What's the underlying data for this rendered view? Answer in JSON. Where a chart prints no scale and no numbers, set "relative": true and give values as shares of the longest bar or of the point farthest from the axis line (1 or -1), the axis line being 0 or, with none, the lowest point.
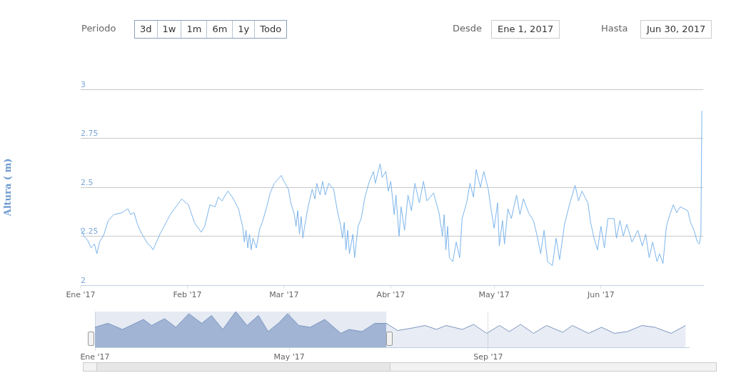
{
  "chart_data": [
    {
      "type": "line",
      "ylabel": "Altura ( m)",
      "annotations": [
        "Periodo",
        "3d",
        "1w",
        "1m",
        "6m",
        "1y",
        "Todo",
        "Desde",
        "Ene 1, 2017",
        "Hasta",
        "Jun 30, 2017"
      ],
      "xlim": [
        "2017-01-01",
        "2017-06-30T16:00"
      ],
      "xticks": [
        {
          "value": "2017-01-01",
          "label": "Ene '17"
        },
        {
          "value": "2017-02-01",
          "label": "Feb '17"
        },
        {
          "value": "2017-03-01",
          "label": "Mar '17"
        },
        {
          "value": "2017-04-01",
          "label": "Abr '17"
        },
        {
          "value": "2017-05-01",
          "label": "May '17"
        },
        {
          "value": "2017-06-01",
          "label": "Jun '17"
        }
      ],
      "ylim": [
        2,
        3
      ],
      "yticks": [
        2,
        2.25,
        2.5,
        2.75,
        3
      ],
      "grid": "y",
      "legend": false,
      "marker": "none",
      "line_style": "solid",
      "series": [
        {
          "color": "#7cb5ec",
          "x": [
            "2017-01-01",
            "2017-01-02",
            "2017-01-03",
            "2017-01-04",
            "2017-01-05",
            "2017-01-05T17:00",
            "2017-01-06T12:00",
            "2017-01-07T19:00",
            "2017-01-09",
            "2017-01-10T14:00",
            "2017-01-13",
            "2017-01-14T17:00",
            "2017-01-15T12:00",
            "2017-01-16T12:00",
            "2017-01-17T12:00",
            "2017-01-18T12:00",
            "2017-01-19T12:00",
            "2017-01-20T12:00",
            "2017-01-21T07:00",
            "2017-01-22",
            "2017-01-23",
            "2017-01-24",
            "2017-01-27",
            "2017-01-30T07:00",
            "2017-02-01T07:00",
            "2017-02-03",
            "2017-02-05",
            "2017-02-06",
            "2017-02-07T12:00",
            "2017-02-09",
            "2017-02-10",
            "2017-02-11",
            "2017-02-12T17:00",
            "2017-02-14",
            "2017-02-15T19:00",
            "2017-02-17",
            "2017-02-17T12:00",
            "2017-02-18",
            "2017-02-18T12:00",
            "2017-02-19",
            "2017-02-19T12:00",
            "2017-02-20",
            "2017-02-21",
            "2017-02-22",
            "2017-02-22T17:00",
            "2017-02-24",
            "2017-02-25",
            "2017-02-26T05:00",
            "2017-02-28T05:00",
            "2017-03-01",
            "2017-03-02T07:00",
            "2017-03-03",
            "2017-03-04",
            "2017-03-04T12:00",
            "2017-03-05",
            "2017-03-05T12:00",
            "2017-03-06",
            "2017-03-06T12:00",
            "2017-03-07",
            "2017-03-08",
            "2017-03-09T05:00",
            "2017-03-10",
            "2017-03-10T12:00",
            "2017-03-11T12:00",
            "2017-03-12T05:00",
            "2017-03-13",
            "2017-03-14",
            "2017-03-15T10:00",
            "2017-03-16T12:00",
            "2017-03-17T12:00",
            "2017-03-18",
            "2017-03-18T12:00",
            "2017-03-19",
            "2017-03-19T12:00",
            "2017-03-20",
            "2017-03-21",
            "2017-03-21T12:00",
            "2017-03-22T12:00",
            "2017-03-23T10:00",
            "2017-03-24T12:00",
            "2017-03-25T19:00",
            "2017-03-27",
            "2017-03-27T12:00",
            "2017-03-28T22:00",
            "2017-03-29T12:00",
            "2017-03-30T14:00",
            "2017-03-31T07:00",
            "2017-04-01",
            "2017-04-02",
            "2017-04-02T12:00",
            "2017-04-03T10:00",
            "2017-04-04",
            "2017-04-05",
            "2017-04-06",
            "2017-04-07",
            "2017-04-08",
            "2017-04-09T07:00",
            "2017-04-10T12:00",
            "2017-04-11T12:00",
            "2017-04-13T10:00",
            "2017-04-15",
            "2017-04-16",
            "2017-04-16T12:00",
            "2017-04-17",
            "2017-04-17T12:00",
            "2017-04-18",
            "2017-04-19",
            "2017-04-20",
            "2017-04-21",
            "2017-04-21T17:00",
            "2017-04-23",
            "2017-04-24",
            "2017-04-25",
            "2017-04-25T19:00",
            "2017-04-27",
            "2017-04-28",
            "2017-04-29T07:00",
            "2017-04-30",
            "2017-05-01",
            "2017-05-02",
            "2017-05-02T12:00",
            "2017-05-03T10:00",
            "2017-05-04",
            "2017-05-05",
            "2017-05-06",
            "2017-05-07T12:00",
            "2017-05-08T12:00",
            "2017-05-09T12:00",
            "2017-05-11",
            "2017-05-12T10:00",
            "2017-05-13T12:00",
            "2017-05-14T12:00",
            "2017-05-15T12:00",
            "2017-05-16T12:00",
            "2017-05-17T22:00",
            "2017-05-19",
            "2017-05-20",
            "2017-05-21T10:00",
            "2017-05-23",
            "2017-05-24T12:00",
            "2017-05-25T12:00",
            "2017-05-26T12:00",
            "2017-05-28T05:00",
            "2017-05-29",
            "2017-05-30",
            "2017-05-31",
            "2017-06-01",
            "2017-06-02",
            "2017-06-03",
            "2017-06-04T19:00",
            "2017-06-05T12:00",
            "2017-06-06T12:00",
            "2017-06-07T12:00",
            "2017-06-08T12:00",
            "2017-06-10",
            "2017-06-11T17:00",
            "2017-06-13",
            "2017-06-14",
            "2017-06-15",
            "2017-06-16",
            "2017-06-17T07:00",
            "2017-06-18",
            "2017-06-19",
            "2017-06-20",
            "2017-06-21",
            "2017-06-22",
            "2017-06-23",
            "2017-06-24",
            "2017-06-26T05:00",
            "2017-06-27",
            "2017-06-28",
            "2017-06-29",
            "2017-06-29T14:00",
            "2017-06-30",
            "2017-06-30T07:00"
          ],
          "values": [
            2.29,
            2.25,
            2.23,
            2.19,
            2.21,
            2.16,
            2.22,
            2.26,
            2.33,
            2.36,
            2.37,
            2.39,
            2.36,
            2.37,
            2.31,
            2.27,
            2.24,
            2.21,
            2.2,
            2.18,
            2.22,
            2.26,
            2.36,
            2.44,
            2.41,
            2.32,
            2.27,
            2.3,
            2.41,
            2.4,
            2.45,
            2.43,
            2.48,
            2.45,
            2.39,
            2.3,
            2.22,
            2.28,
            2.19,
            2.26,
            2.18,
            2.24,
            2.19,
            2.29,
            2.32,
            2.4,
            2.47,
            2.52,
            2.56,
            2.53,
            2.49,
            2.42,
            2.36,
            2.3,
            2.38,
            2.26,
            2.35,
            2.24,
            2.3,
            2.4,
            2.49,
            2.44,
            2.52,
            2.46,
            2.53,
            2.46,
            2.52,
            2.49,
            2.38,
            2.3,
            2.24,
            2.32,
            2.18,
            2.28,
            2.16,
            2.26,
            2.14,
            2.3,
            2.34,
            2.45,
            2.53,
            2.58,
            2.52,
            2.62,
            2.55,
            2.58,
            2.48,
            2.53,
            2.36,
            2.46,
            2.25,
            2.4,
            2.28,
            2.46,
            2.38,
            2.52,
            2.42,
            2.53,
            2.43,
            2.47,
            2.37,
            2.25,
            2.36,
            2.18,
            2.3,
            2.14,
            2.12,
            2.22,
            2.14,
            2.34,
            2.42,
            2.52,
            2.45,
            2.59,
            2.5,
            2.58,
            2.49,
            2.4,
            2.29,
            2.42,
            2.2,
            2.33,
            2.21,
            2.39,
            2.34,
            2.46,
            2.36,
            2.44,
            2.37,
            2.33,
            2.25,
            2.16,
            2.28,
            2.12,
            2.1,
            2.24,
            2.13,
            2.31,
            2.42,
            2.51,
            2.43,
            2.48,
            2.42,
            2.32,
            2.24,
            2.18,
            2.3,
            2.19,
            2.34,
            2.34,
            2.24,
            2.33,
            2.25,
            2.31,
            2.22,
            2.28,
            2.2,
            2.26,
            2.14,
            2.22,
            2.12,
            2.16,
            2.11,
            2.3,
            2.36,
            2.41,
            2.37,
            2.4,
            2.38,
            2.32,
            2.28,
            2.22,
            2.21,
            2.26,
            2.89
          ]
        }
      ]
    },
    {
      "type": "area",
      "relative": true,
      "legend": false,
      "grid": "x",
      "marker": "none",
      "xlim": [
        "2017-01-01",
        "2018-01-03"
      ],
      "xticks": [
        {
          "value": "2017-01-01",
          "label": "Ene '17"
        },
        {
          "value": "2017-05-01",
          "label": "May '17"
        },
        {
          "value": "2017-09-01",
          "label": "Sep '17"
        }
      ],
      "bands": [
        {
          "axis": "x",
          "from": "2017-01-01",
          "to": "2017-06-30",
          "color": "#a9bbd8"
        }
      ],
      "series": [
        {
          "color": "#7d97c0",
          "x": [
            "2017-01-01",
            "2017-01-09",
            "2017-01-18",
            "2017-01-31",
            "2017-02-05",
            "2017-02-13",
            "2017-02-20",
            "2017-02-28",
            "2017-03-08",
            "2017-03-14",
            "2017-03-21",
            "2017-03-29",
            "2017-04-05",
            "2017-04-12",
            "2017-04-18",
            "2017-04-25",
            "2017-04-30",
            "2017-05-07",
            "2017-05-14",
            "2017-05-23",
            "2017-06-02",
            "2017-06-07",
            "2017-06-15",
            "2017-06-23",
            "2017-06-30",
            "2017-07-07",
            "2017-07-15",
            "2017-07-24",
            "2017-07-31",
            "2017-08-06",
            "2017-08-16",
            "2017-08-23",
            "2017-08-31",
            "2017-09-08",
            "2017-09-14",
            "2017-09-21",
            "2017-09-29",
            "2017-10-07",
            "2017-10-17",
            "2017-10-23",
            "2017-11-02",
            "2017-11-10",
            "2017-11-18",
            "2017-11-26",
            "2017-12-05",
            "2017-12-13",
            "2017-12-23",
            "2018-01-01"
          ],
          "values": [
            0.56,
            0.67,
            0.5,
            0.78,
            0.61,
            0.8,
            0.56,
            0.94,
            0.67,
            0.89,
            0.5,
            1,
            0.61,
            0.89,
            0.44,
            0.7,
            0.94,
            0.61,
            0.56,
            0.78,
            0.39,
            0.5,
            0.44,
            0.67,
            0.67,
            0.47,
            0.53,
            0.61,
            0.5,
            0.61,
            0.5,
            0.64,
            0.39,
            0.61,
            0.44,
            0.64,
            0.39,
            0.61,
            0.42,
            0.61,
            0.39,
            0.56,
            0.39,
            0.44,
            0.61,
            0.56,
            0.39,
            0.61
          ]
        }
      ]
    }
  ]
}
